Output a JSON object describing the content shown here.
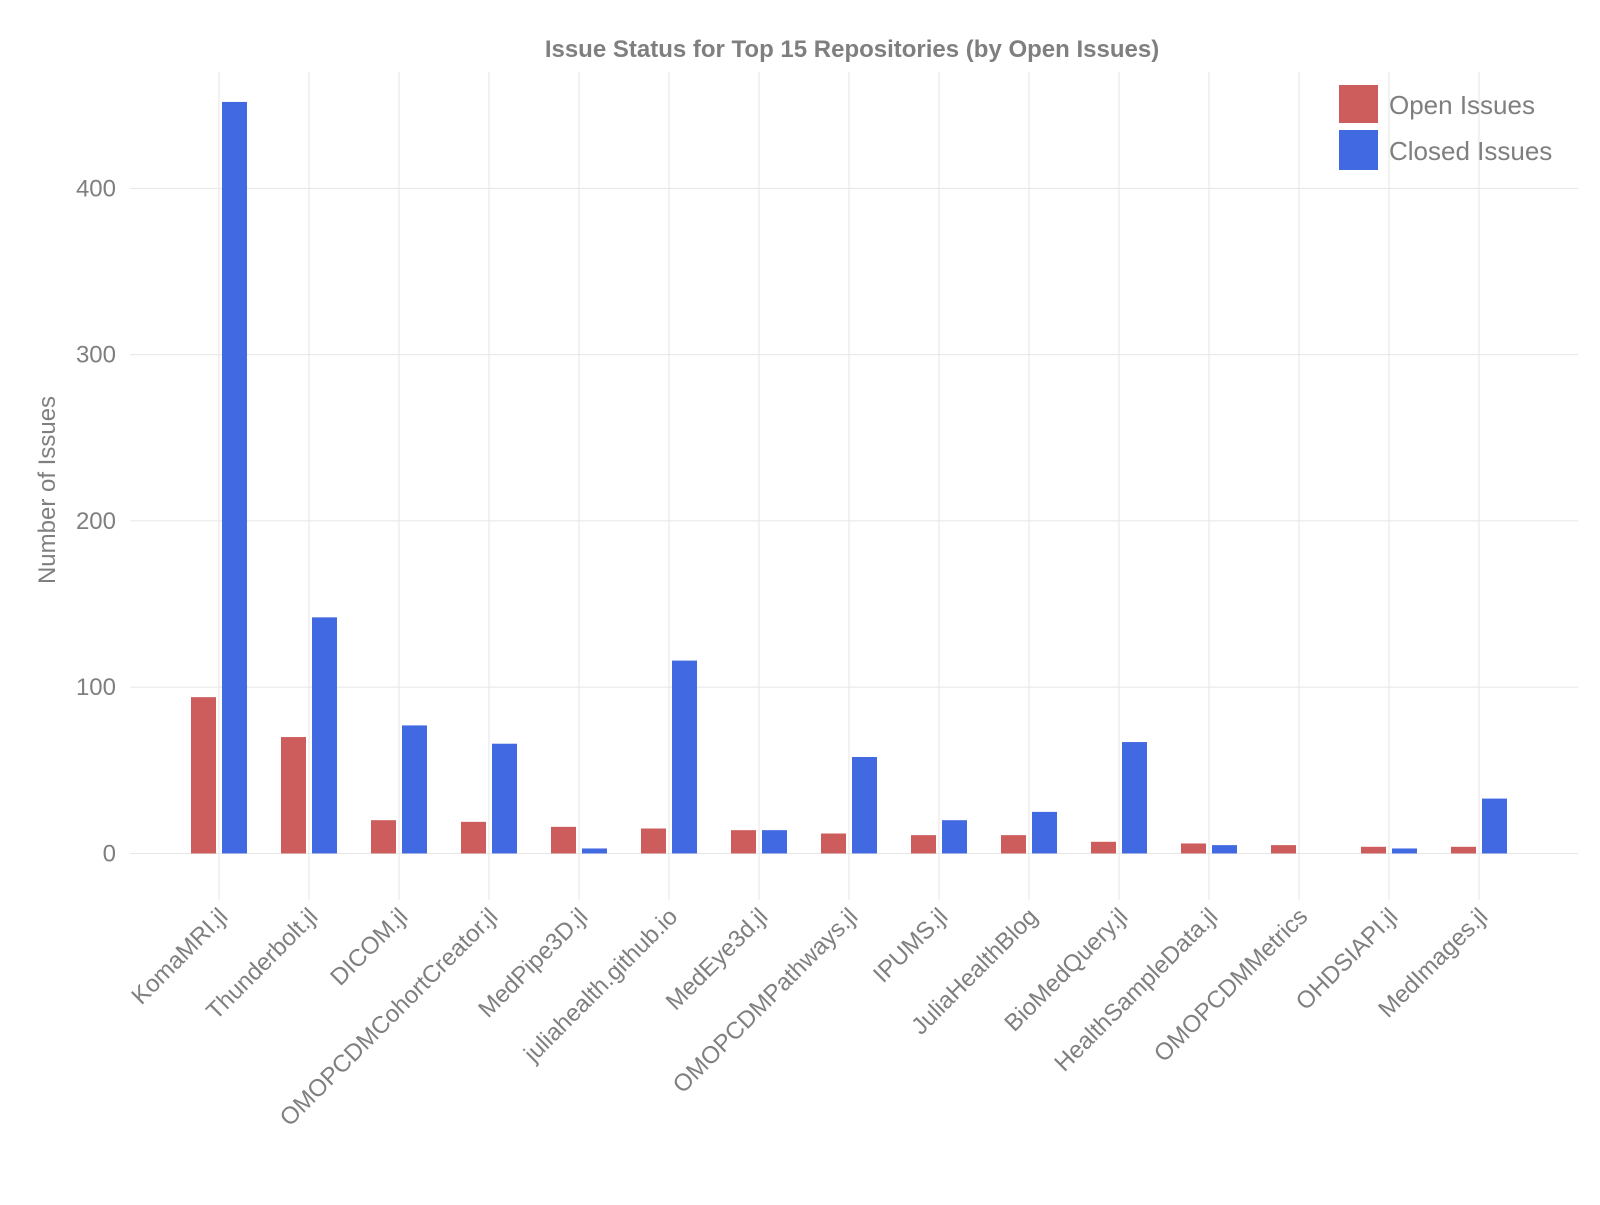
{
  "chart_data": {
    "type": "bar",
    "title": "Issue Status for Top 15 Repositories (by Open Issues)",
    "xlabel": "",
    "ylabel": "Number of Issues",
    "ylim": [
      -28,
      470
    ],
    "yticks": [
      0,
      100,
      200,
      300,
      400
    ],
    "grid": true,
    "legend_position": "top-right",
    "categories": [
      "KomaMRI.jl",
      "Thunderbolt.jl",
      "DICOM.jl",
      "OMOPCDMCohortCreator.jl",
      "MedPipe3D.jl",
      "juliahealth.github.io",
      "MedEye3d.jl",
      "OMOPCDMPathways.jl",
      "IPUMS.jl",
      "JuliaHealthBlog",
      "BioMedQuery.jl",
      "HealthSampleData.jl",
      "OMOPCDMMetrics",
      "OHDSIAPI.jl",
      "MedImages.jl"
    ],
    "series": [
      {
        "name": "Open Issues",
        "color": "#cd5c5c",
        "values": [
          94,
          70,
          20,
          19,
          16,
          15,
          14,
          12,
          11,
          11,
          7,
          6,
          5,
          4,
          4
        ]
      },
      {
        "name": "Closed Issues",
        "color": "#4169e1",
        "values": [
          452,
          142,
          77,
          66,
          3,
          116,
          14,
          58,
          20,
          25,
          67,
          5,
          0,
          3,
          33
        ]
      }
    ]
  },
  "colors": {
    "text": "#7f7f7f",
    "grid": "#e6e6e6",
    "background": "#ffffff"
  }
}
